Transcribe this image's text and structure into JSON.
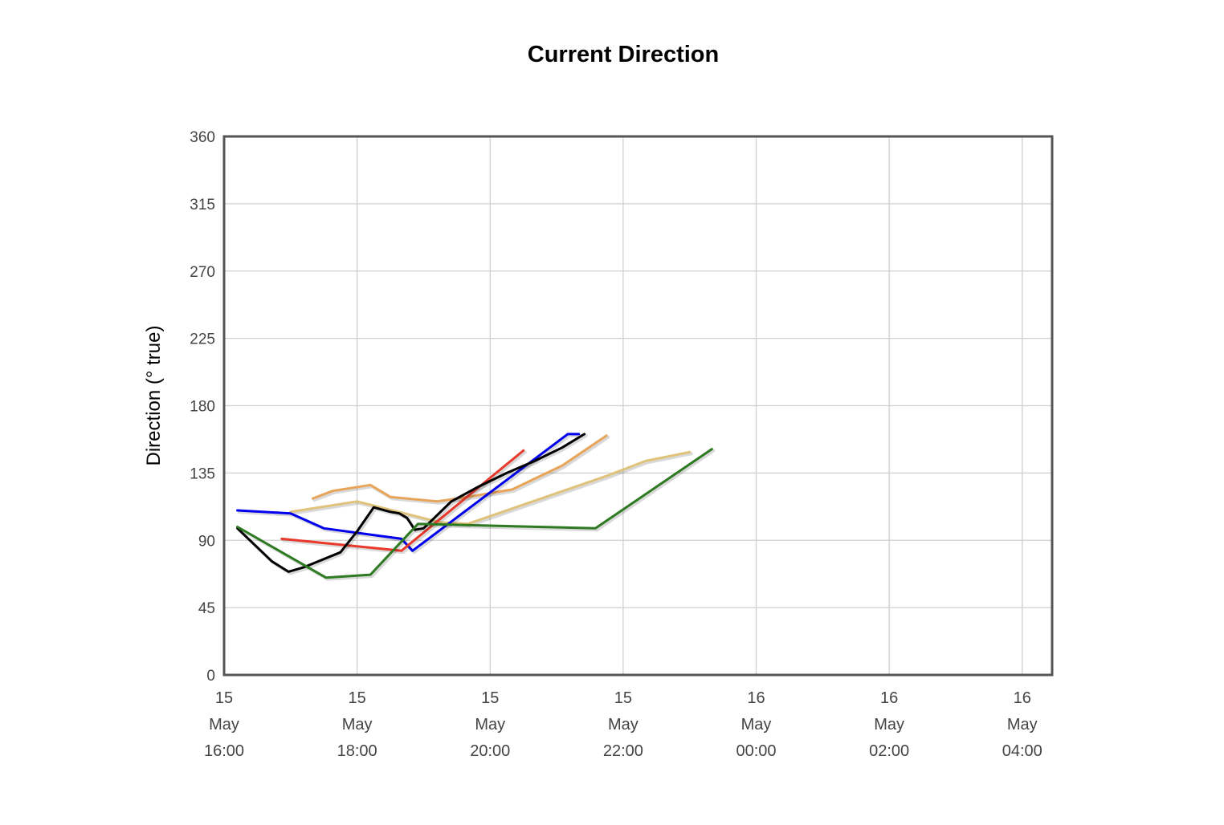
{
  "chart_data": {
    "type": "line",
    "title": "Current Direction",
    "xlabel": "",
    "ylabel": "Direction (° true)",
    "x_axis_type": "time",
    "xlim": [
      "2024-05-15T16:00",
      "2024-05-16T04:27"
    ],
    "ylim": [
      0,
      360
    ],
    "grid": true,
    "y_ticks": [
      "0",
      "45",
      "90",
      "135",
      "180",
      "225",
      "270",
      "315",
      "360"
    ],
    "x_ticks": [
      {
        "t": "2024-05-15T16:00",
        "lines": [
          "15",
          "May",
          "16:00"
        ]
      },
      {
        "t": "2024-05-15T18:00",
        "lines": [
          "15",
          "May",
          "18:00"
        ]
      },
      {
        "t": "2024-05-15T20:00",
        "lines": [
          "15",
          "May",
          "20:00"
        ]
      },
      {
        "t": "2024-05-15T22:00",
        "lines": [
          "15",
          "May",
          "22:00"
        ]
      },
      {
        "t": "2024-05-16T00:00",
        "lines": [
          "16",
          "May",
          "00:00"
        ]
      },
      {
        "t": "2024-05-16T02:00",
        "lines": [
          "16",
          "May",
          "02:00"
        ]
      },
      {
        "t": "2024-05-16T04:00",
        "lines": [
          "16",
          "May",
          "04:00"
        ]
      }
    ],
    "series": [
      {
        "color": "#e8a55a",
        "points": [
          [
            "2024-05-15T17:20",
            118
          ],
          [
            "2024-05-15T17:38",
            123
          ],
          [
            "2024-05-15T18:12",
            127
          ],
          [
            "2024-05-15T18:30",
            119
          ],
          [
            "2024-05-15T19:12",
            116
          ],
          [
            "2024-05-15T19:40",
            119
          ],
          [
            "2024-05-15T20:20",
            124
          ],
          [
            "2024-05-15T21:05",
            140
          ],
          [
            "2024-05-15T21:45",
            160
          ]
        ]
      },
      {
        "color": "#e0c37a",
        "points": [
          [
            "2024-05-15T17:00",
            109
          ],
          [
            "2024-05-15T18:00",
            116
          ],
          [
            "2024-05-15T19:15",
            102
          ],
          [
            "2024-05-15T19:40",
            101
          ],
          [
            "2024-05-15T21:45",
            133
          ],
          [
            "2024-05-15T22:20",
            143
          ],
          [
            "2024-05-15T23:00",
            149
          ]
        ]
      },
      {
        "color": "#0000ee",
        "points": [
          [
            "2024-05-15T16:12",
            110
          ],
          [
            "2024-05-15T17:00",
            108
          ],
          [
            "2024-05-15T17:30",
            98
          ],
          [
            "2024-05-15T18:40",
            91
          ],
          [
            "2024-05-15T18:50",
            83
          ],
          [
            "2024-05-15T21:10",
            161
          ],
          [
            "2024-05-15T21:20",
            161
          ]
        ]
      },
      {
        "color": "#e8392b",
        "points": [
          [
            "2024-05-15T16:52",
            91
          ],
          [
            "2024-05-15T18:40",
            83
          ],
          [
            "2024-05-15T20:30",
            150
          ]
        ]
      },
      {
        "color": "#000000",
        "points": [
          [
            "2024-05-15T16:12",
            98
          ],
          [
            "2024-05-15T16:43",
            76
          ],
          [
            "2024-05-15T16:58",
            69
          ],
          [
            "2024-05-15T17:12",
            72
          ],
          [
            "2024-05-15T17:45",
            82
          ],
          [
            "2024-05-15T18:00",
            96
          ],
          [
            "2024-05-15T18:15",
            112
          ],
          [
            "2024-05-15T18:30",
            109
          ],
          [
            "2024-05-15T18:38",
            108
          ],
          [
            "2024-05-15T18:45",
            105
          ],
          [
            "2024-05-15T18:52",
            97
          ],
          [
            "2024-05-15T19:00",
            98
          ],
          [
            "2024-05-15T19:25",
            116
          ],
          [
            "2024-05-15T19:50",
            126
          ],
          [
            "2024-05-15T20:15",
            135
          ],
          [
            "2024-05-15T20:40",
            143
          ],
          [
            "2024-05-15T21:05",
            152
          ],
          [
            "2024-05-15T21:25",
            161
          ]
        ]
      },
      {
        "color": "#2e7a22",
        "points": [
          [
            "2024-05-15T16:12",
            99
          ],
          [
            "2024-05-15T17:32",
            65
          ],
          [
            "2024-05-15T18:12",
            67
          ],
          [
            "2024-05-15T18:55",
            101
          ],
          [
            "2024-05-15T21:35",
            98
          ],
          [
            "2024-05-15T23:20",
            151
          ]
        ]
      }
    ]
  }
}
